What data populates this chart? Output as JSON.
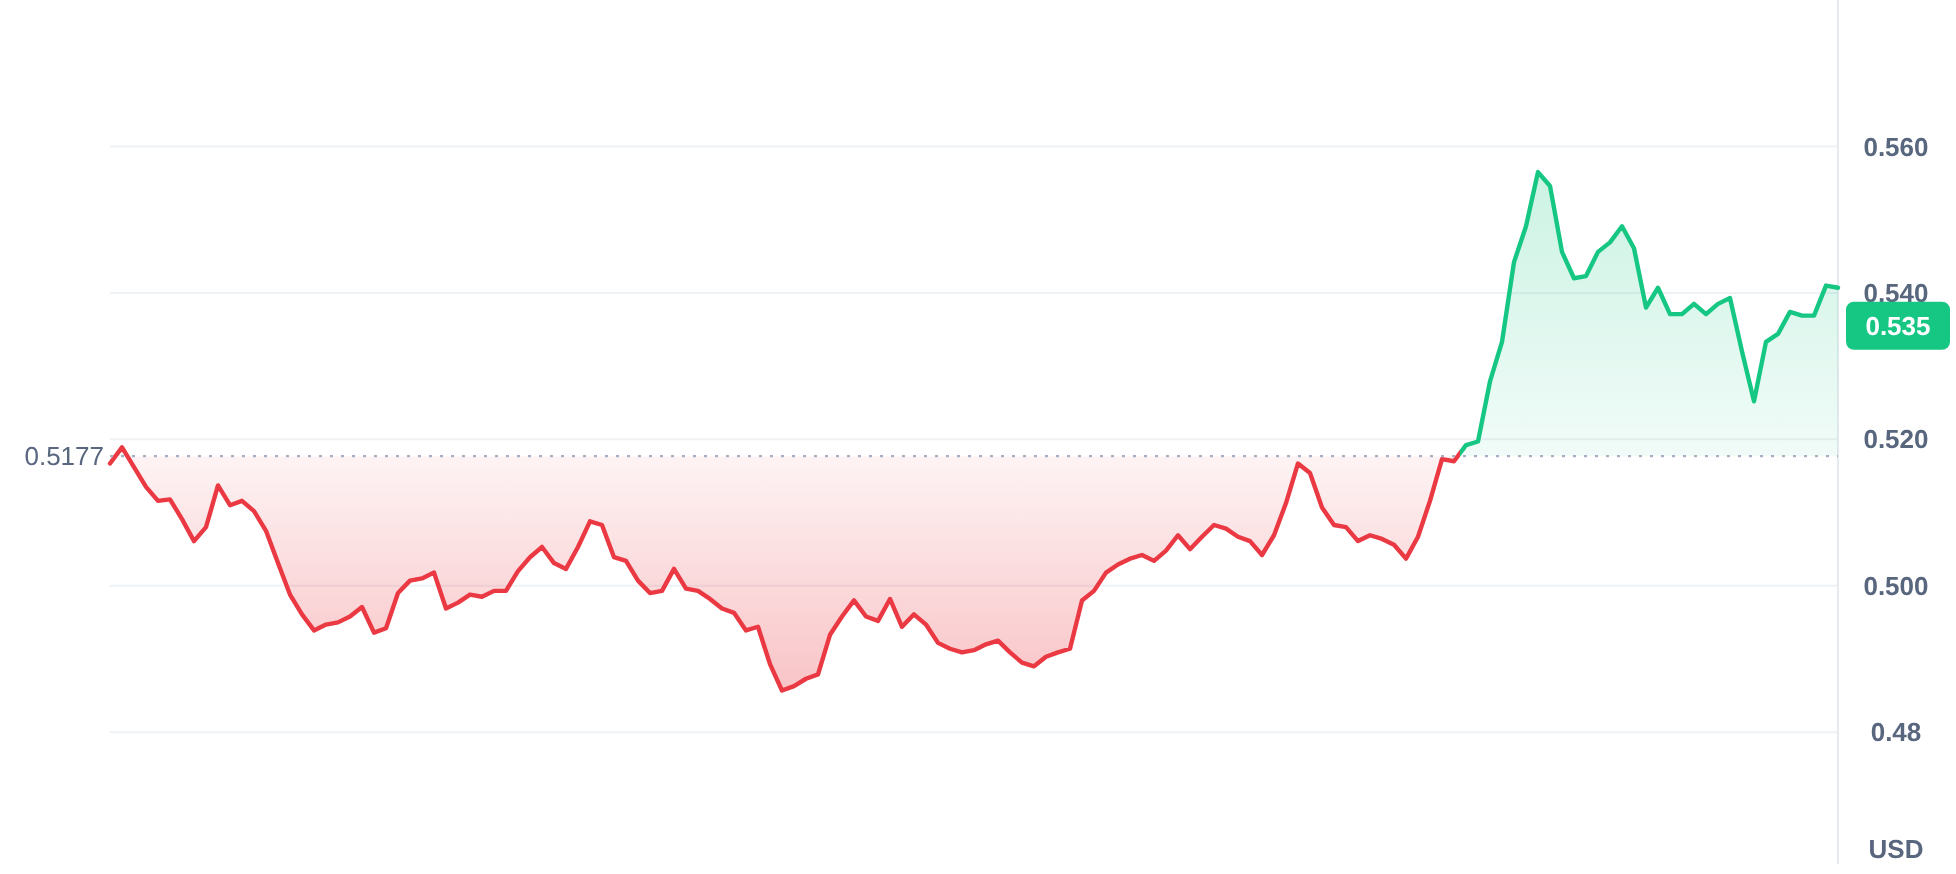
{
  "chart_data": {
    "type": "area",
    "ylabel": "USD",
    "tick_labels": "y",
    "grid": "y",
    "categories": [
      null,
      null,
      null,
      null,
      null,
      null,
      null,
      null,
      null,
      null,
      null,
      null,
      null,
      null,
      null,
      null,
      null,
      null,
      null,
      null,
      null,
      null,
      null,
      null,
      null,
      null,
      null,
      null,
      null,
      null,
      null,
      null,
      null,
      null,
      null,
      null,
      null,
      null,
      null,
      null,
      null,
      null,
      null,
      null,
      null,
      null,
      null,
      null,
      null,
      null,
      null,
      null,
      null,
      null,
      null,
      null,
      null,
      null,
      null,
      null,
      null,
      null,
      null,
      null,
      null,
      null,
      null,
      null,
      null,
      null,
      null,
      null,
      null,
      null,
      null,
      null,
      null,
      null,
      null,
      null,
      null,
      null,
      null,
      null,
      null,
      null,
      null,
      null,
      null,
      null,
      null,
      null,
      null,
      null,
      null,
      null,
      null,
      null,
      null,
      null,
      null,
      null,
      null,
      null,
      null,
      null,
      null,
      null,
      null,
      null,
      null,
      null,
      null,
      null,
      null,
      null,
      null,
      null,
      null,
      null,
      null,
      null,
      null,
      null,
      null,
      null,
      null,
      null,
      null,
      null,
      null,
      null,
      null,
      null,
      null,
      null,
      null,
      null,
      null,
      null,
      null,
      null,
      null,
      null,
      null
    ],
    "ylim": [
      0.462,
      0.58
    ],
    "yticks": [
      {
        "value": 0.48,
        "label": "0.48"
      },
      {
        "value": 0.5,
        "label": "0.500"
      },
      {
        "value": 0.52,
        "label": "0.520"
      },
      {
        "value": 0.54,
        "label": "0.540"
      },
      {
        "value": 0.56,
        "label": "0.560"
      }
    ],
    "ref_lines": [
      {
        "axis": "y",
        "value": 0.5177,
        "label": "0.5177",
        "line_style": "dotted",
        "color": "#a6b0c3"
      }
    ],
    "annotations": [
      "0.535"
    ],
    "series": [
      {
        "colors": [
          "#ea3943",
          "#ea3943",
          "#ea3943",
          "#ea3943",
          "#ea3943",
          "#ea3943",
          "#ea3943",
          "#ea3943",
          "#ea3943",
          "#ea3943",
          "#ea3943",
          "#ea3943",
          "#ea3943",
          "#ea3943",
          "#ea3943",
          "#ea3943",
          "#ea3943",
          "#ea3943",
          "#ea3943",
          "#ea3943",
          "#ea3943",
          "#ea3943",
          "#ea3943",
          "#ea3943",
          "#ea3943",
          "#ea3943",
          "#ea3943",
          "#ea3943",
          "#ea3943",
          "#ea3943",
          "#ea3943",
          "#ea3943",
          "#ea3943",
          "#ea3943",
          "#ea3943",
          "#ea3943",
          "#ea3943",
          "#ea3943",
          "#ea3943",
          "#ea3943",
          "#ea3943",
          "#ea3943",
          "#ea3943",
          "#ea3943",
          "#ea3943",
          "#ea3943",
          "#ea3943",
          "#ea3943",
          "#ea3943",
          "#ea3943",
          "#ea3943",
          "#ea3943",
          "#ea3943",
          "#ea3943",
          "#ea3943",
          "#ea3943",
          "#ea3943",
          "#ea3943",
          "#ea3943",
          "#ea3943",
          "#ea3943",
          "#ea3943",
          "#ea3943",
          "#ea3943",
          "#ea3943",
          "#ea3943",
          "#ea3943",
          "#ea3943",
          "#ea3943",
          "#ea3943",
          "#ea3943",
          "#ea3943",
          "#ea3943",
          "#ea3943",
          "#ea3943",
          "#ea3943",
          "#ea3943",
          "#ea3943",
          "#ea3943",
          "#ea3943",
          "#ea3943",
          "#ea3943",
          "#ea3943",
          "#ea3943",
          "#ea3943",
          "#ea3943",
          "#ea3943",
          "#ea3943",
          "#ea3943",
          "#ea3943",
          "#ea3943",
          "#ea3943",
          "#ea3943",
          "#ea3943",
          "#ea3943",
          "#ea3943",
          "#ea3943",
          "#ea3943",
          "#ea3943",
          "#ea3943",
          "#ea3943",
          "#ea3943",
          "#ea3943",
          "#ea3943",
          "#ea3943",
          "#ea3943",
          "#ea3943",
          "#ea3943",
          "#ea3943",
          "#ea3943",
          "#ea3943",
          "#ea3943",
          "#ea3943",
          "#16c784",
          "#16c784",
          "#16c784",
          "#16c784",
          "#16c784",
          "#16c784",
          "#16c784",
          "#16c784",
          "#16c784",
          "#16c784",
          "#16c784",
          "#16c784",
          "#16c784",
          "#16c784",
          "#16c784",
          "#16c784",
          "#16c784",
          "#16c784",
          "#16c784",
          "#16c784",
          "#16c784",
          "#16c784",
          "#16c784",
          "#16c784",
          "#16c784",
          "#16c784",
          "#16c784",
          "#16c784",
          "#16c784",
          "#16c784",
          "#16c784",
          "#16c784"
        ],
        "values": [
          0.5167,
          0.5189,
          0.5162,
          0.5135,
          0.5116,
          0.5118,
          0.5091,
          0.5061,
          0.508,
          0.5137,
          0.511,
          0.5116,
          0.5102,
          0.5075,
          0.5031,
          0.4988,
          0.4961,
          0.4939,
          0.4947,
          0.495,
          0.4958,
          0.4971,
          0.4936,
          0.4942,
          0.499,
          0.5007,
          0.501,
          0.5018,
          0.4969,
          0.4977,
          0.4988,
          0.4985,
          0.4993,
          0.4993,
          0.502,
          0.5039,
          0.5053,
          0.5031,
          0.5023,
          0.5053,
          0.5088,
          0.5083,
          0.5039,
          0.5034,
          0.5007,
          0.499,
          0.4993,
          0.5023,
          0.4996,
          0.4993,
          0.4982,
          0.4969,
          0.4963,
          0.4939,
          0.4944,
          0.4893,
          0.4857,
          0.4863,
          0.4873,
          0.4879,
          0.4933,
          0.4958,
          0.498,
          0.4958,
          0.4952,
          0.4982,
          0.4944,
          0.4961,
          0.4947,
          0.4922,
          0.4914,
          0.4909,
          0.4912,
          0.492,
          0.4925,
          0.4909,
          0.4895,
          0.489,
          0.4903,
          0.4909,
          0.4914,
          0.498,
          0.4993,
          0.5018,
          0.5029,
          0.5037,
          0.5042,
          0.5034,
          0.5048,
          0.5069,
          0.505,
          0.5067,
          0.5083,
          0.5078,
          0.5067,
          0.5061,
          0.5042,
          0.5069,
          0.5113,
          0.5167,
          0.5154,
          0.5107,
          0.5083,
          0.508,
          0.5061,
          0.5069,
          0.5064,
          0.5056,
          0.5037,
          0.5067,
          0.5116,
          0.5173,
          0.517,
          0.5192,
          0.5197,
          0.5279,
          0.5333,
          0.5442,
          0.5491,
          0.5565,
          0.5546,
          0.5456,
          0.542,
          0.5423,
          0.5456,
          0.5469,
          0.5491,
          0.5461,
          0.538,
          0.5407,
          0.5371,
          0.5371,
          0.5385,
          0.5371,
          0.5385,
          0.5393,
          0.532,
          0.5252,
          0.5333,
          0.5344,
          0.5374,
          0.5369,
          0.5369,
          0.541,
          0.5407
        ]
      }
    ]
  }
}
